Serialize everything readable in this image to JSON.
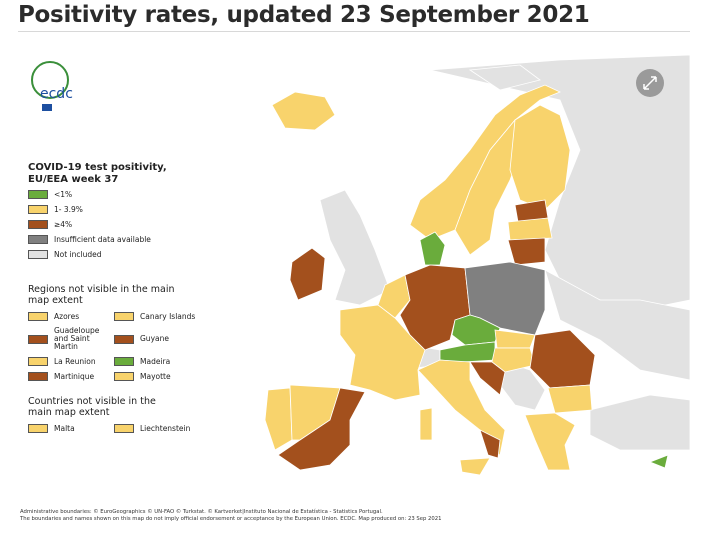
{
  "title": "Positivity rates, updated 23 September 2021",
  "logo": {
    "text": "ecdc"
  },
  "legend": {
    "title": "COVID-19 test positivity, EU/EEA week 37",
    "items": [
      {
        "label": "<1%",
        "color": "#6aac3c"
      },
      {
        "label": "1- 3.9%",
        "color": "#f8d36c"
      },
      {
        "label": "≥4%",
        "color": "#a3501d"
      },
      {
        "label": "Insufficient data available",
        "color": "#808080"
      },
      {
        "label": "Not included",
        "color": "#e2e2e2"
      }
    ]
  },
  "regions": {
    "title": "Regions not visible in the main map extent",
    "items": [
      {
        "name": "Azores",
        "color": "#f8d36c"
      },
      {
        "name": "Canary Islands",
        "color": "#f8d36c"
      },
      {
        "name": "Guadeloupe and Saint Martin",
        "color": "#a3501d"
      },
      {
        "name": "Guyane",
        "color": "#a3501d"
      },
      {
        "name": "La Reunion",
        "color": "#f8d36c"
      },
      {
        "name": "Madeira",
        "color": "#6aac3c"
      },
      {
        "name": "Martinique",
        "color": "#a3501d"
      },
      {
        "name": "Mayotte",
        "color": "#f8d36c"
      }
    ]
  },
  "countries": {
    "title": "Countries not visible in the main map extent",
    "items": [
      {
        "name": "Malta",
        "color": "#f8d36c"
      },
      {
        "name": "Liechtenstein",
        "color": "#f8d36c"
      }
    ]
  },
  "footer": [
    "Administrative boundaries: © EuroGeographics © UN-FAO © Turkstat. © Kartverket|Instituto Nacional de Estatística - Statistics Portugal.",
    "The boundaries and names shown on this map do not imply official endorsement or acceptance by the European Union. ECDC. Map produced on: 23 Sep 2021"
  ]
}
